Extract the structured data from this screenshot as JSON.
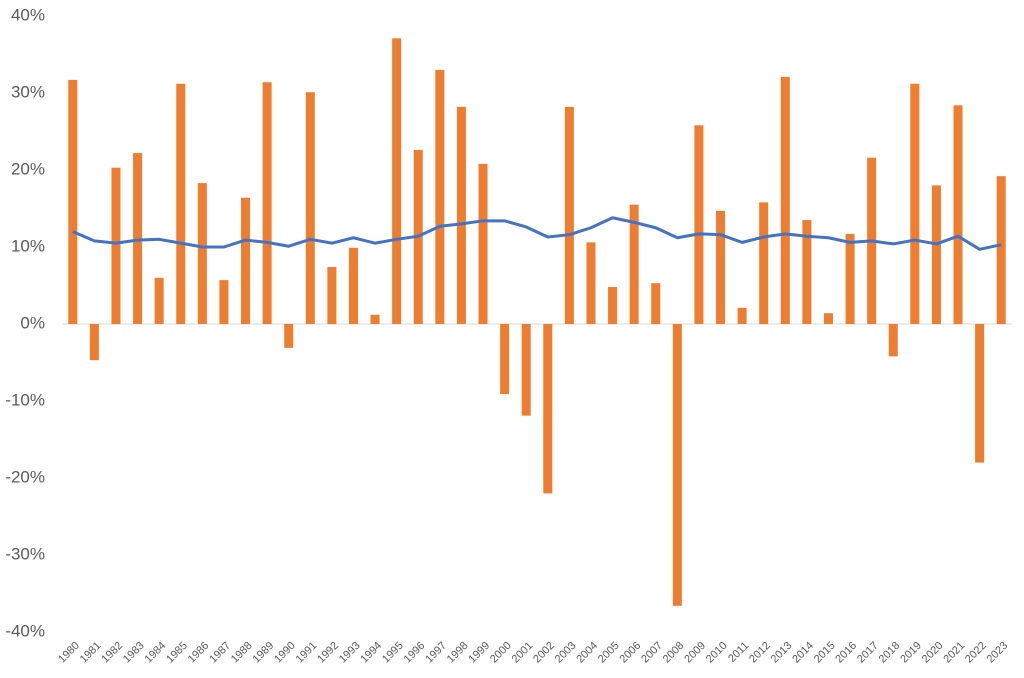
{
  "chart_data": {
    "type": "bar",
    "categories": [
      "1980",
      "1981",
      "1982",
      "1983",
      "1984",
      "1985",
      "1986",
      "1987",
      "1988",
      "1989",
      "1990",
      "1991",
      "1992",
      "1993",
      "1994",
      "1995",
      "1996",
      "1997",
      "1998",
      "1999",
      "2000",
      "2001",
      "2002",
      "2003",
      "2004",
      "2005",
      "2006",
      "2007",
      "2008",
      "2009",
      "2010",
      "2011",
      "2012",
      "2013",
      "2014",
      "2015",
      "2016",
      "2017",
      "2018",
      "2019",
      "2020",
      "2021",
      "2022",
      "2023"
    ],
    "series": [
      {
        "type": "bar",
        "color": "#ed7d31",
        "values": [
          31.7,
          -4.7,
          20.3,
          22.2,
          6.0,
          31.2,
          18.3,
          5.7,
          16.4,
          31.4,
          -3.1,
          30.1,
          7.4,
          9.9,
          1.2,
          37.1,
          22.6,
          33.0,
          28.2,
          20.8,
          -9.1,
          -11.9,
          -22.0,
          28.2,
          10.6,
          4.8,
          15.5,
          5.3,
          -36.6,
          25.8,
          14.7,
          2.1,
          15.8,
          32.1,
          13.5,
          1.4,
          11.7,
          21.6,
          -4.2,
          31.2,
          18.0,
          28.4,
          -18.0,
          19.2
        ]
      },
      {
        "type": "line",
        "color": "#4472c4",
        "values": [
          12.0,
          10.8,
          10.5,
          10.9,
          11.0,
          10.5,
          10.0,
          10.0,
          10.9,
          10.6,
          10.1,
          11.0,
          10.5,
          11.2,
          10.5,
          11.0,
          11.4,
          12.7,
          13.0,
          13.4,
          13.4,
          12.6,
          11.3,
          11.6,
          12.5,
          13.8,
          13.2,
          12.5,
          11.2,
          11.7,
          11.6,
          10.6,
          11.3,
          11.7,
          11.4,
          11.2,
          10.6,
          10.8,
          10.4,
          10.9,
          10.4,
          11.4,
          9.7,
          10.3
        ]
      }
    ],
    "ylim": [
      -40,
      40
    ],
    "yticks": [
      {
        "value": -40,
        "label": "-40%"
      },
      {
        "value": -30,
        "label": "-30%"
      },
      {
        "value": -20,
        "label": "-20%"
      },
      {
        "value": -10,
        "label": "-10%"
      },
      {
        "value": 0,
        "label": "0%"
      },
      {
        "value": 10,
        "label": "10%"
      },
      {
        "value": 20,
        "label": "20%"
      },
      {
        "value": 30,
        "label": "30%"
      },
      {
        "value": 40,
        "label": "40%"
      }
    ],
    "grid": false
  }
}
